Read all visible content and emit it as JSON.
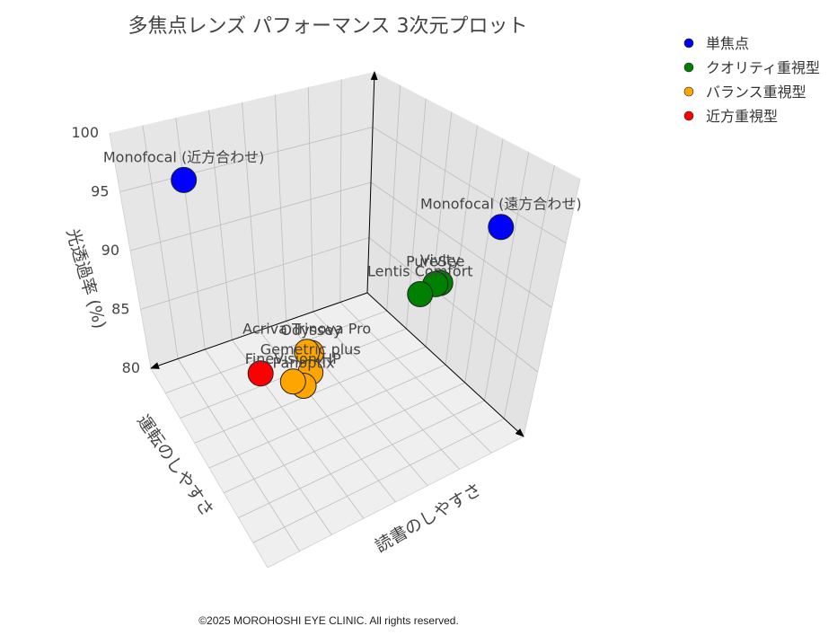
{
  "copyright": "©2025 MOROHOSHI EYE CLINIC. All rights reserved.",
  "chart_data": {
    "type": "scatter3d",
    "title": "多焦点レンズ パフォーマンス 3次元プロット",
    "axes": {
      "x": {
        "label": "読書のしやすさ"
      },
      "y": {
        "label": "運転のしやすさ"
      },
      "z": {
        "label": "光透過率 (%)",
        "range": [
          80,
          100
        ],
        "ticks": [
          "80",
          "85",
          "90",
          "95",
          "100"
        ]
      }
    },
    "legend_position": "top-right",
    "series": [
      {
        "name": "単焦点",
        "color": "#0000ff",
        "points": [
          {
            "label": "Monofocal (近方合わせ)",
            "x": 9.5,
            "y": 1,
            "z": 98
          },
          {
            "label": "Monofocal (遠方合わせ)",
            "x": 1,
            "y": 9.5,
            "z": 99
          }
        ]
      },
      {
        "name": "クオリティ重視型",
        "color": "#008000",
        "points": [
          {
            "label": "Vivity",
            "x": 3,
            "y": 8.5,
            "z": 94
          },
          {
            "label": "PureSee",
            "x": 3,
            "y": 8.2,
            "z": 93.5
          },
          {
            "label": "Lentis Comfort",
            "x": 4,
            "y": 8.6,
            "z": 93.8
          }
        ]
      },
      {
        "name": "バランス重視型",
        "color": "#ffa500",
        "points": [
          {
            "label": "Odyssey",
            "x": 7.8,
            "y": 7,
            "z": 89
          },
          {
            "label": "Acriva Trinova Pro",
            "x": 7.7,
            "y": 6.6,
            "z": 88.5
          },
          {
            "label": "Gemetric plus",
            "x": 7.5,
            "y": 6.6,
            "z": 86.5
          },
          {
            "label": "Panoptix",
            "x": 7.8,
            "y": 6.6,
            "z": 85.5
          },
          {
            "label": "FineVision HP",
            "x": 8,
            "y": 6.2,
            "z": 85.5
          }
        ]
      },
      {
        "name": "近方重視型",
        "color": "#ff0000",
        "points": [
          {
            "label": "",
            "x": 9,
            "y": 5.5,
            "z": 86
          }
        ]
      }
    ]
  }
}
